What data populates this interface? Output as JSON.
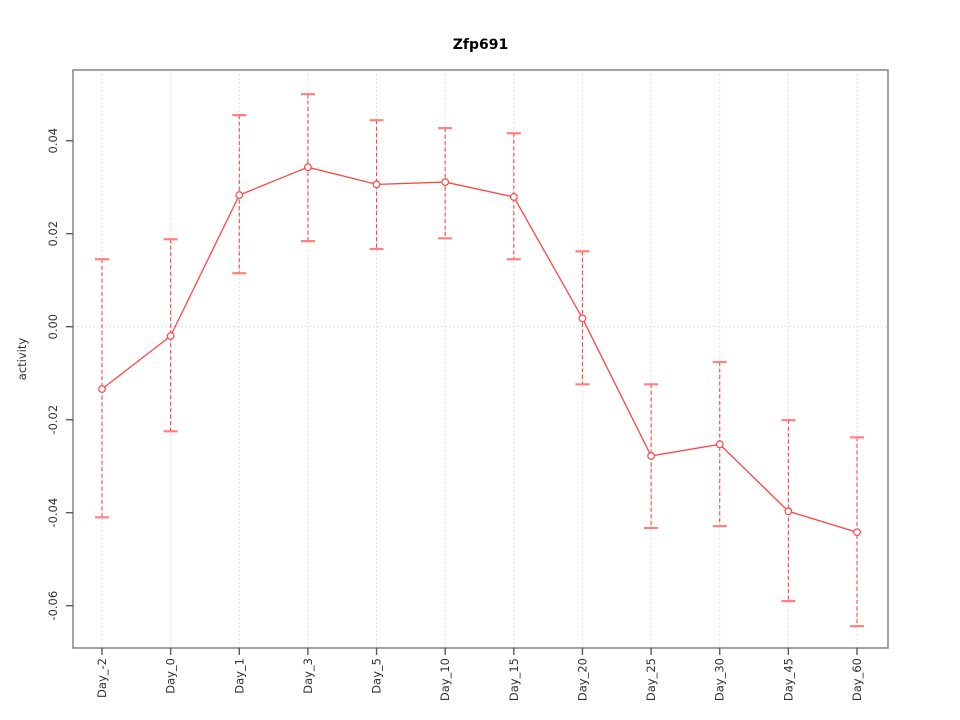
{
  "chart_data": {
    "type": "line",
    "title": "Zfp691",
    "xlabel": "",
    "ylabel": "activity",
    "categories": [
      "Day_-2",
      "Day_0",
      "Day_1",
      "Day_3",
      "Day_5",
      "Day_10",
      "Day_15",
      "Day_20",
      "Day_25",
      "Day_30",
      "Day_45",
      "Day_60"
    ],
    "series": [
      {
        "name": "activity",
        "marker": "open-circle",
        "values": [
          -0.0134,
          -0.002,
          0.0283,
          0.0343,
          0.0306,
          0.0311,
          0.0279,
          0.0018,
          -0.0278,
          -0.0253,
          -0.0397,
          -0.0442
        ],
        "error_high": [
          0.0145,
          0.0188,
          0.0455,
          0.05,
          0.0444,
          0.0427,
          0.0416,
          0.0162,
          -0.0124,
          -0.0076,
          -0.0201,
          -0.0238
        ],
        "error_low": [
          -0.041,
          -0.0225,
          0.0115,
          0.0184,
          0.0167,
          0.019,
          0.0145,
          -0.0124,
          -0.0433,
          -0.0429,
          -0.059,
          -0.0644
        ]
      }
    ],
    "yticks": [
      0.04,
      0.02,
      0,
      -0.02,
      -0.04,
      -0.06
    ],
    "ytick_labels": [
      "0.04",
      "0.02",
      "0.00",
      "-0.02",
      "-0.04",
      "-0.06"
    ],
    "ylim": [
      -0.0691,
      0.0552
    ],
    "grid": {
      "vertical": "dotted line at every category",
      "horizontal_at": [
        0
      ],
      "style": "dotted"
    },
    "legend": "none",
    "colors": {
      "series": "#ff4545",
      "error_cap": "#ff8080",
      "grid": "#d8d8d8",
      "box": "#8c8c8c",
      "axis_tick": "#5a5a5a",
      "text": "#303030",
      "background": "#ffffff"
    }
  }
}
